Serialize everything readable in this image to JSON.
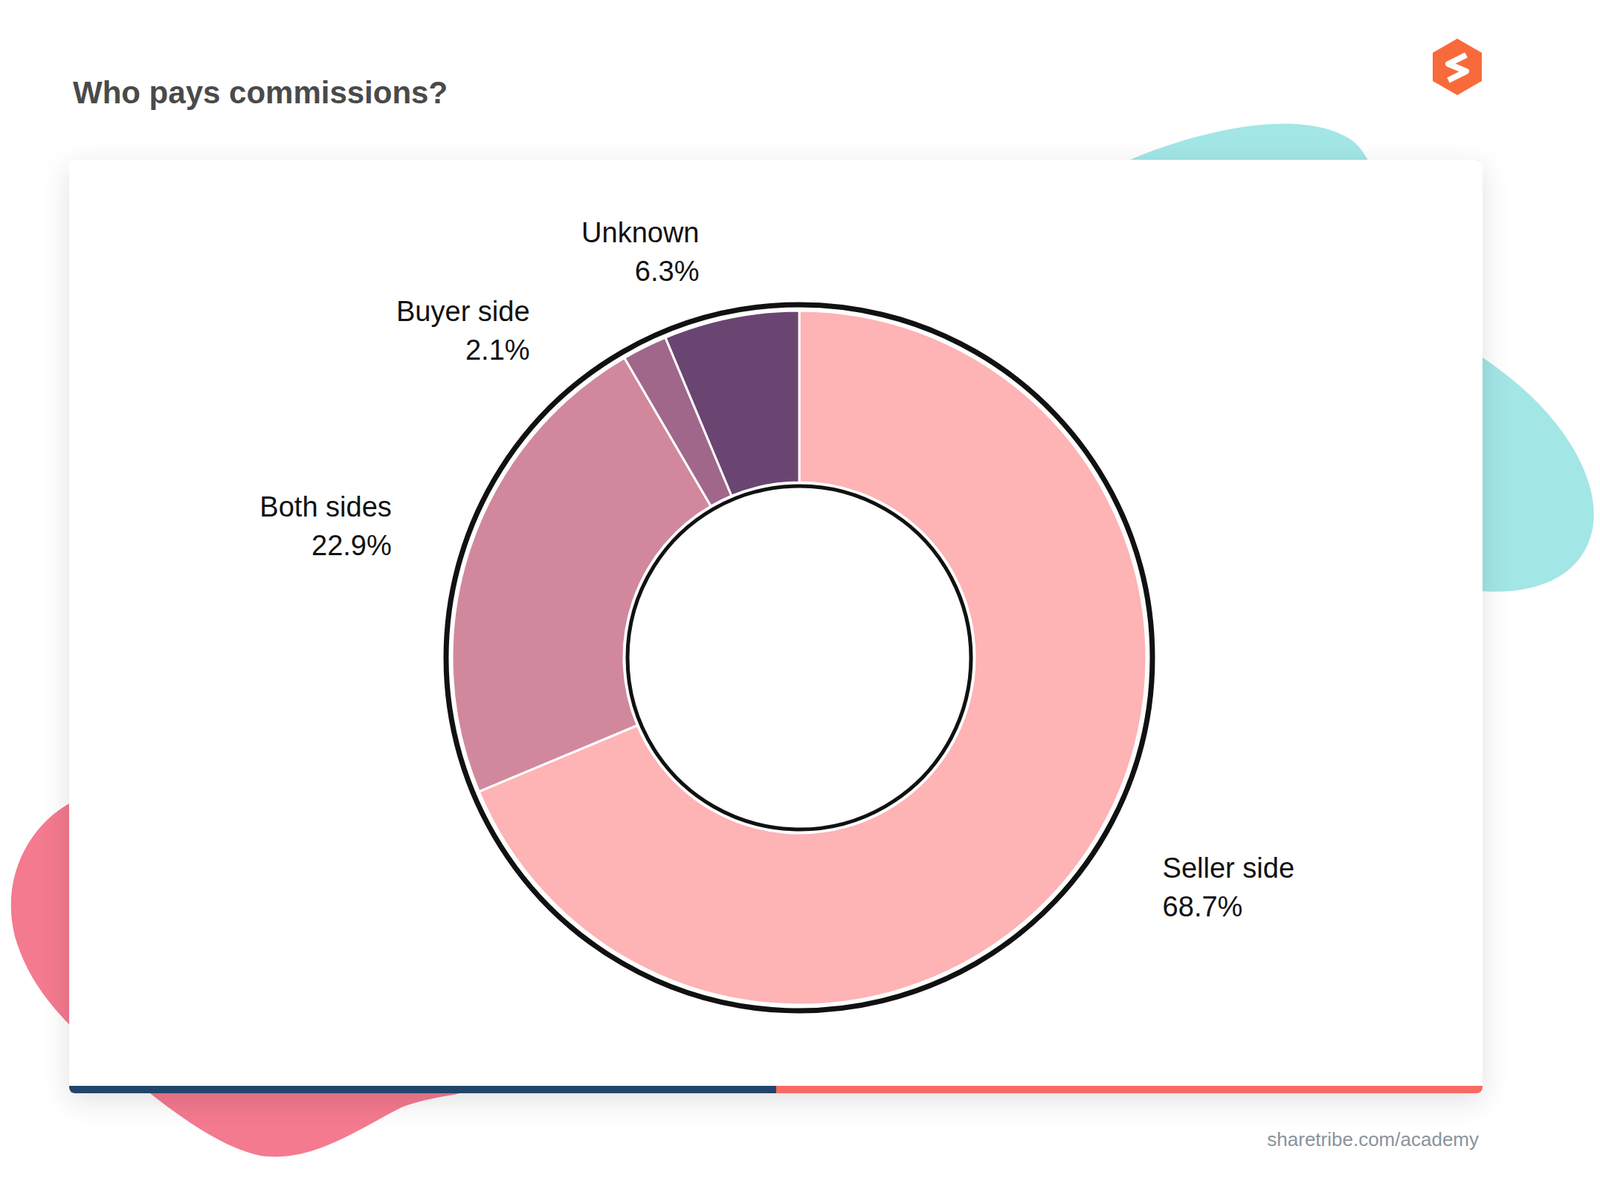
{
  "chart_data": {
    "type": "pie",
    "title": "Who pays commissions?",
    "categories": [
      "Seller side",
      "Both sides",
      "Buyer side",
      "Unknown"
    ],
    "values": [
      68.7,
      22.9,
      2.1,
      6.3
    ],
    "value_labels": [
      "68.7%",
      "22.9%",
      "2.1%",
      "6.3%"
    ],
    "colors": [
      "#feb3b5",
      "#d1889d",
      "#a0678b",
      "#6a4571"
    ],
    "data_labels": true,
    "annotations": [
      "sharetribe.com/academy"
    ]
  }
}
